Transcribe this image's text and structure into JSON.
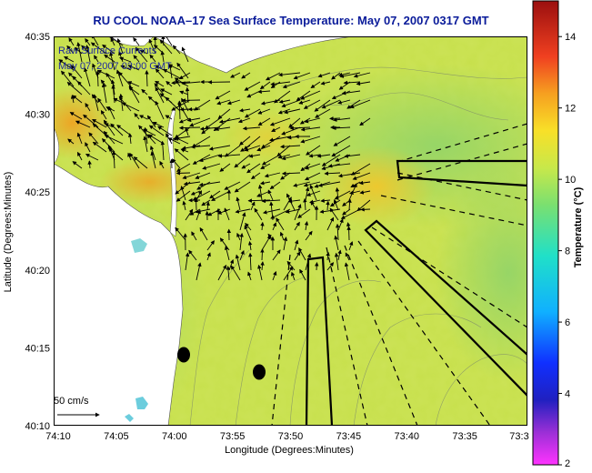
{
  "title": "RU COOL  NOAA–17  Sea Surface Temperature:  May 07, 2007 0317 GMT",
  "legend_lines": [
    "Raw Surface Currents",
    "May 07, 2007 03:00 GMT"
  ],
  "scale_label": "50 cm/s",
  "colors": {
    "title": "#0a1b9a",
    "land": "#ffffff",
    "sea_base": "#c4e04a",
    "frame": "#000000"
  },
  "axes": {
    "xlabel": "Longitude (Degrees:Minutes)",
    "ylabel": "Latitude (Degrees:Minutes)",
    "xticks": [
      "74:10",
      "74:05",
      "74:00",
      "73:55",
      "73:50",
      "73:45",
      "73:40",
      "73:35",
      "73:3"
    ],
    "yticks": [
      "40:35",
      "40:30",
      "40:25",
      "40:20",
      "40:15",
      "40:10"
    ]
  },
  "colorbar": {
    "label": "Temperature (°C)",
    "ticks": [
      "14",
      "12",
      "10",
      "8",
      "6",
      "4",
      "2"
    ],
    "range": [
      2,
      15
    ]
  },
  "icons": [
    "map-frame",
    "vector-arrow",
    "sampling-station-dot",
    "hf-radar-transect"
  ]
}
